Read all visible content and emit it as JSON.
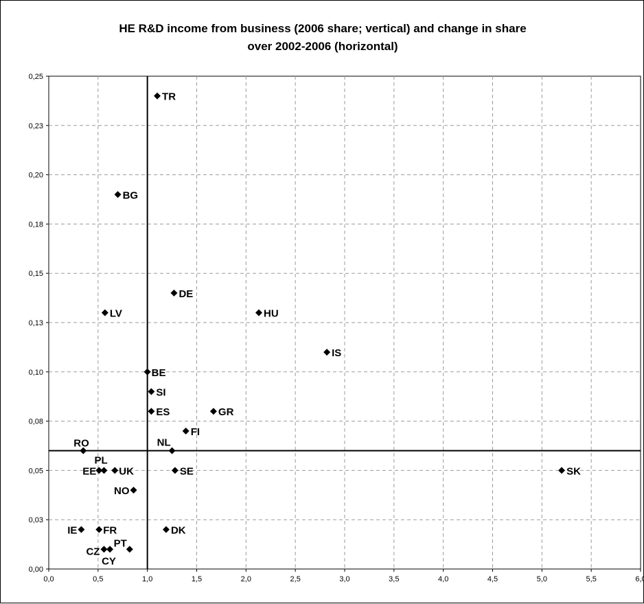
{
  "title_line1": "HE R&D income from business (2006 share; vertical) and change in share",
  "title_line2": "over 2002-2006 (horizontal)",
  "chart_data": {
    "type": "scatter",
    "title": "HE R&D income from business (2006 share; vertical) and change in share over 2002-2006 (horizontal)",
    "xlabel": "",
    "ylabel": "",
    "xlim": [
      0,
      6
    ],
    "ylim": [
      0,
      0.25
    ],
    "x_ticks": [
      0,
      0.5,
      1,
      1.5,
      2,
      2.5,
      3,
      3.5,
      4,
      4.5,
      5,
      5.5,
      6
    ],
    "y_ticks": [
      0,
      0.025,
      0.05,
      0.075,
      0.1,
      0.125,
      0.15,
      0.175,
      0.2,
      0.225,
      0.25
    ],
    "x_tick_labels": [
      "0,0",
      "0,5",
      "1,0",
      "1,5",
      "2,0",
      "2,5",
      "3,0",
      "3,5",
      "4,0",
      "4,5",
      "5,0",
      "5,5",
      "6,0"
    ],
    "y_tick_labels": [
      "0,00",
      "0,03",
      "0,05",
      "0,08",
      "0,10",
      "0,13",
      "0,15",
      "0,18",
      "0,20",
      "0,23",
      "0,25"
    ],
    "grid": true,
    "reference_lines": {
      "x": 1.0,
      "y": 0.06
    },
    "marker_color": "#000000",
    "points": [
      {
        "label": "TR",
        "x": 1.1,
        "y": 0.24
      },
      {
        "label": "BG",
        "x": 0.7,
        "y": 0.19
      },
      {
        "label": "DE",
        "x": 1.27,
        "y": 0.14
      },
      {
        "label": "HU",
        "x": 2.13,
        "y": 0.13
      },
      {
        "label": "LV",
        "x": 0.57,
        "y": 0.13
      },
      {
        "label": "IS",
        "x": 2.82,
        "y": 0.11
      },
      {
        "label": "BE",
        "x": 1.0,
        "y": 0.1
      },
      {
        "label": "SI",
        "x": 1.04,
        "y": 0.09
      },
      {
        "label": "ES",
        "x": 1.04,
        "y": 0.08
      },
      {
        "label": "GR",
        "x": 1.67,
        "y": 0.08
      },
      {
        "label": "FI",
        "x": 1.39,
        "y": 0.07
      },
      {
        "label": "NL",
        "x": 1.25,
        "y": 0.06
      },
      {
        "label": "RO",
        "x": 0.35,
        "y": 0.06
      },
      {
        "label": "PL",
        "x": 0.56,
        "y": 0.05
      },
      {
        "label": "EE",
        "x": 0.51,
        "y": 0.05
      },
      {
        "label": "UK",
        "x": 0.67,
        "y": 0.05
      },
      {
        "label": "SE",
        "x": 1.28,
        "y": 0.05
      },
      {
        "label": "SK",
        "x": 5.2,
        "y": 0.05
      },
      {
        "label": "NO",
        "x": 0.86,
        "y": 0.04
      },
      {
        "label": "IE",
        "x": 0.33,
        "y": 0.02
      },
      {
        "label": "FR",
        "x": 0.51,
        "y": 0.02
      },
      {
        "label": "DK",
        "x": 1.19,
        "y": 0.02
      },
      {
        "label": "CZ",
        "x": 0.56,
        "y": 0.01
      },
      {
        "label": "CY",
        "x": 0.62,
        "y": 0.01
      },
      {
        "label": "PT",
        "x": 0.82,
        "y": 0.01
      }
    ]
  }
}
